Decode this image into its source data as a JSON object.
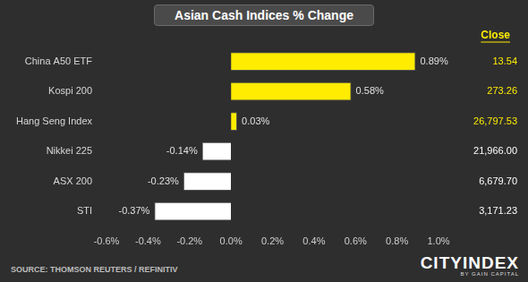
{
  "chart_data": {
    "type": "bar",
    "orientation": "horizontal",
    "title": "Asian Cash Indices % Change",
    "categories": [
      "China A50 ETF",
      "Kospi 200",
      "Hang Seng Index",
      "Nikkei 225",
      "ASX 200",
      "STI"
    ],
    "values": [
      0.89,
      0.58,
      0.03,
      -0.14,
      -0.23,
      -0.37
    ],
    "value_labels": [
      "0.89%",
      "0.58%",
      "0.03%",
      "-0.14%",
      "-0.23%",
      "-0.37%"
    ],
    "colors": [
      "#ffec00",
      "#ffec00",
      "#ffec00",
      "#ffffff",
      "#ffffff",
      "#ffffff"
    ],
    "xlim": [
      -0.6,
      1.0
    ],
    "xticks": [
      {
        "value": -0.6,
        "label": "-0.6%"
      },
      {
        "value": -0.4,
        "label": "-0.4%"
      },
      {
        "value": -0.2,
        "label": "-0.2%"
      },
      {
        "value": 0,
        "label": "0.0%"
      },
      {
        "value": 0.2,
        "label": "0.2%"
      },
      {
        "value": 0.4,
        "label": "0.4%"
      },
      {
        "value": 0.6,
        "label": "0.6%"
      },
      {
        "value": 0.8,
        "label": "0.8%"
      },
      {
        "value": 1.0,
        "label": "1.0%"
      }
    ],
    "grid": false,
    "data_labels": true,
    "close": {
      "title": "Close",
      "values": [
        13.54,
        273.26,
        26797.53,
        21966.0,
        6679.7,
        3171.23
      ],
      "value_labels": [
        "13.54",
        "273.26",
        "26,797.53",
        "21,966.00",
        "6,679.70",
        "3,171.23"
      ]
    },
    "source": "SOURCE: THOMSON REUTERS / REFINITIV",
    "brand": "CITYINDEX",
    "brand_subtitle": "BY GAIN CAPITAL"
  }
}
